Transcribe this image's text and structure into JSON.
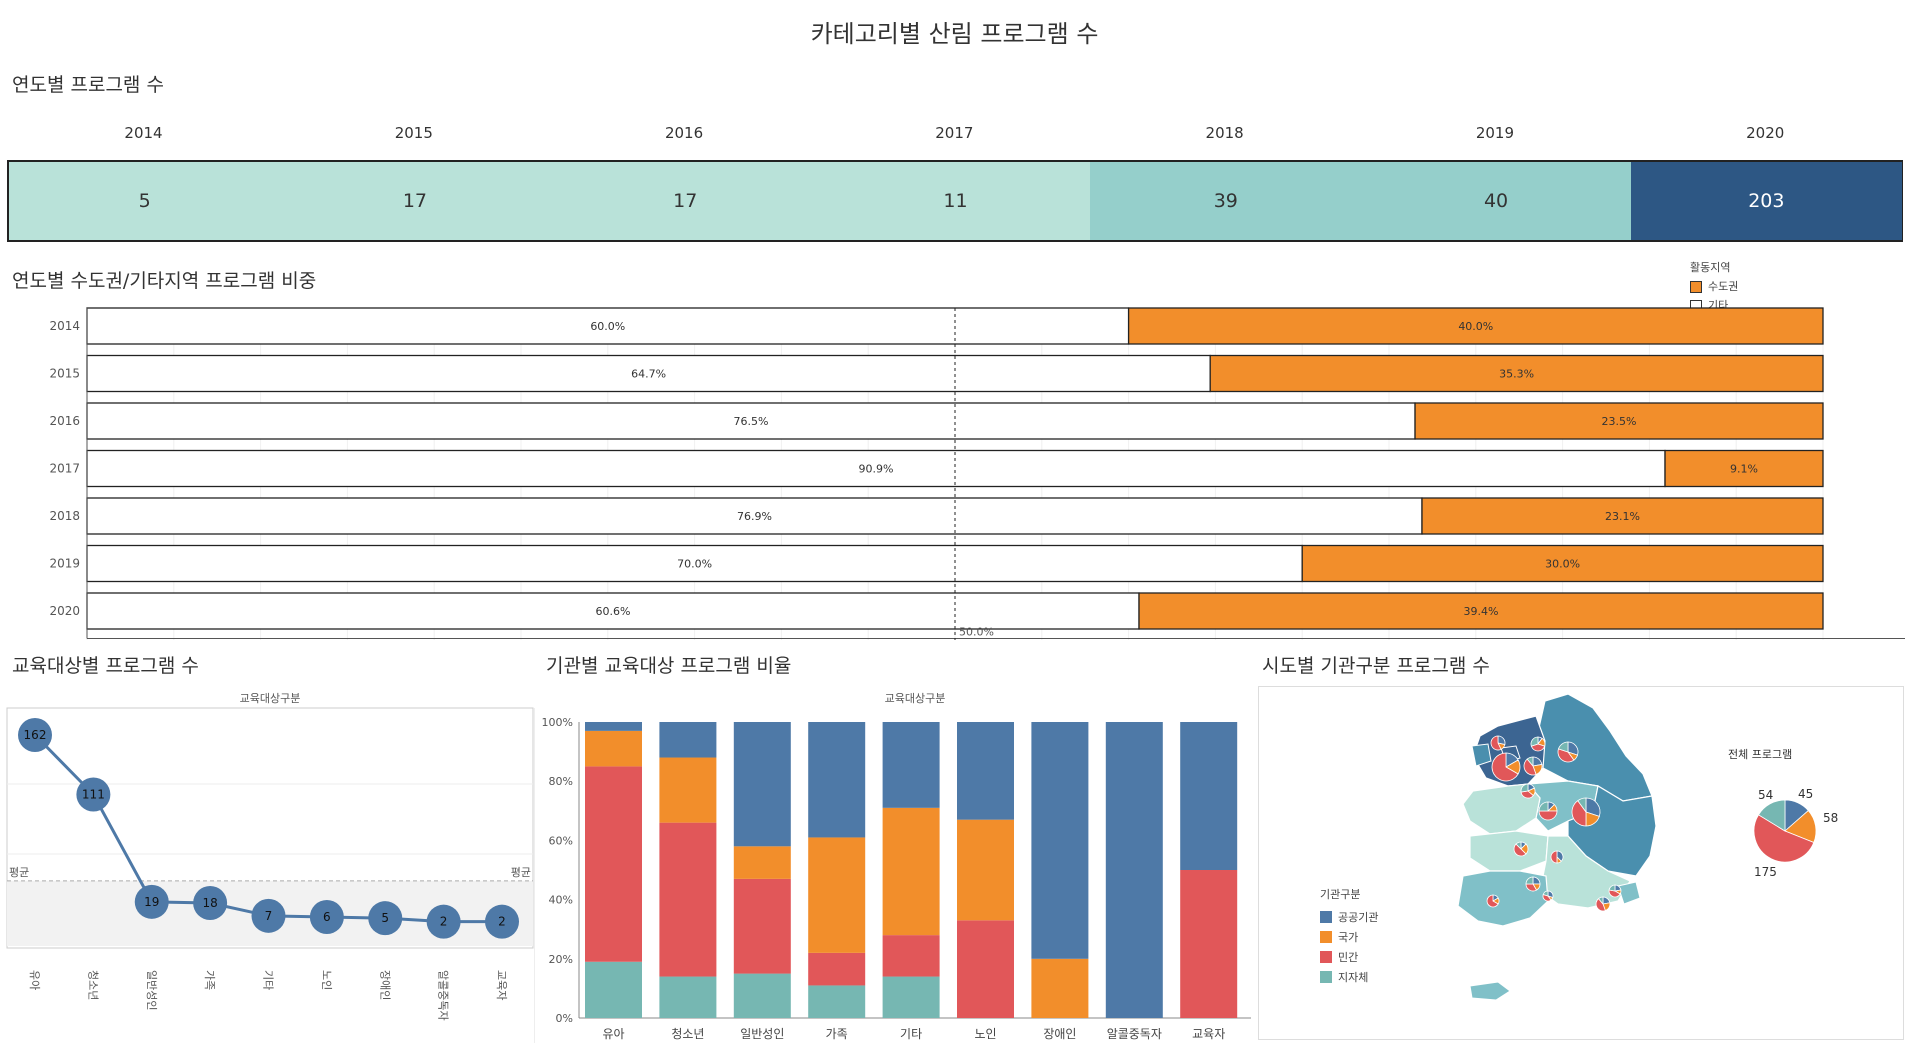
{
  "dashboard_title": "카테고리별 산림 프로그램 수",
  "section_titles": {
    "yearly": "연도별 프로그램 수",
    "region_share": "연도별 수도권/기타지역 프로그램 비중",
    "target": "교육대상별 프로그램 수",
    "agency_target": "기관별 교육대상 프로그램 비율",
    "sido": "시도별 기관구분 프로그램 수"
  },
  "colors": {
    "heat_light": "#b9e2d9",
    "heat_mid": "#95cfcb",
    "heat_dark": "#2d5784",
    "orange": "#f28e2b",
    "blue": "#4e79a7",
    "red": "#e15759",
    "teal": "#76b7b2",
    "map_light": "#b9e2d9",
    "map_mid": "#80c0c8",
    "map_teal": "#4a8fae",
    "map_dark": "#3c6592"
  },
  "chart_data": [
    {
      "type": "heatmap",
      "id": "yearly",
      "categories": [
        "2014",
        "2015",
        "2016",
        "2017",
        "2018",
        "2019",
        "2020"
      ],
      "values": [
        5,
        17,
        17,
        11,
        39,
        40,
        203
      ]
    },
    {
      "type": "bar",
      "id": "region_share",
      "orientation": "horizontal-stacked-100",
      "categories": [
        "2014",
        "2015",
        "2016",
        "2017",
        "2018",
        "2019",
        "2020"
      ],
      "legend_title": "활동지역",
      "series": [
        {
          "name": "기타",
          "values": [
            60.0,
            64.7,
            76.5,
            90.9,
            76.9,
            70.0,
            60.6
          ],
          "labels": [
            "60.0%",
            "64.7%",
            "76.5%",
            "90.9%",
            "76.9%",
            "70.0%",
            "60.6%"
          ]
        },
        {
          "name": "수도권",
          "values": [
            40.0,
            35.3,
            23.5,
            9.1,
            23.1,
            30.0,
            39.4
          ],
          "labels": [
            "40.0%",
            "35.3%",
            "23.5%",
            "9.1%",
            "23.1%",
            "30.0%",
            "39.4%"
          ]
        }
      ],
      "reference_line": {
        "value": 50,
        "label": "50.0%"
      },
      "xlim": [
        0,
        100
      ]
    },
    {
      "type": "line",
      "id": "target",
      "header": "교육대상구분",
      "categories": [
        "유아",
        "청소년",
        "일반성인",
        "가족",
        "기타",
        "노인",
        "장애인",
        "알콜중독자",
        "교육자"
      ],
      "values": [
        162,
        111,
        19,
        18,
        7,
        6,
        5,
        2,
        2
      ],
      "reference_line": {
        "label": "평균",
        "value": 37
      },
      "ylim": [
        0,
        180
      ]
    },
    {
      "type": "bar",
      "id": "agency_target",
      "orientation": "vertical-stacked-100",
      "header": "교육대상구분",
      "categories": [
        "유아",
        "청소년",
        "일반성인",
        "가족",
        "기타",
        "노인",
        "장애인",
        "알콜중독자",
        "교육자"
      ],
      "series": [
        {
          "name": "지자체",
          "values": [
            19,
            14,
            15,
            11,
            14,
            0,
            0,
            0,
            0
          ]
        },
        {
          "name": "민간",
          "values": [
            66,
            52,
            32,
            11,
            14,
            33,
            0,
            0,
            50
          ]
        },
        {
          "name": "국가",
          "values": [
            12,
            22,
            11,
            39,
            43,
            34,
            20,
            0,
            0
          ]
        },
        {
          "name": "공공기관",
          "values": [
            3,
            12,
            42,
            39,
            29,
            33,
            80,
            100,
            50
          ]
        }
      ],
      "yticks": [
        "0%",
        "20%",
        "40%",
        "60%",
        "80%",
        "100%"
      ],
      "ylim": [
        0,
        100
      ]
    },
    {
      "type": "pie",
      "id": "national_total",
      "title": "전체 프로그램",
      "slices": [
        {
          "name": "공공기관",
          "value": 45
        },
        {
          "name": "국가",
          "value": 58
        },
        {
          "name": "민간",
          "value": 175
        },
        {
          "name": "지자체",
          "value": 54
        }
      ],
      "legend_title": "기관구분",
      "legend": [
        "공공기관",
        "국가",
        "민간",
        "지자체"
      ]
    }
  ]
}
